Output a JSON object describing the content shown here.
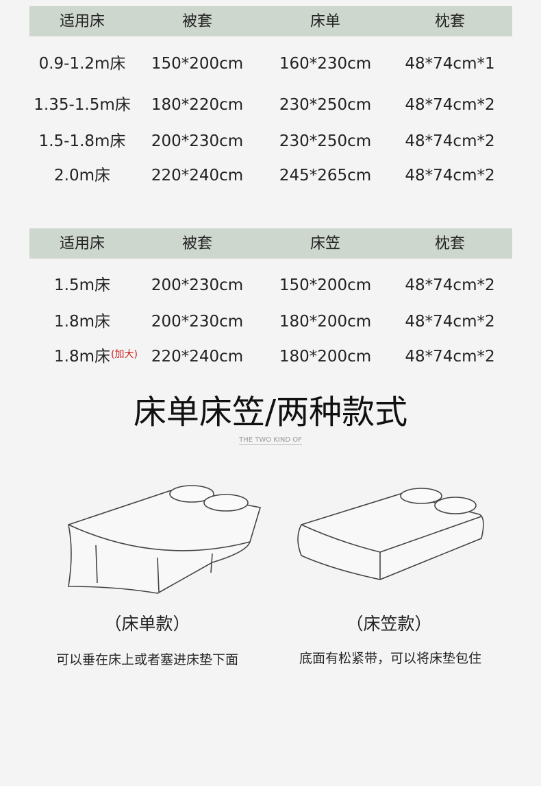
{
  "table1": {
    "headers": [
      "适用床",
      "被套",
      "床单",
      "枕套"
    ],
    "rows": [
      [
        "0.9-1.2m床",
        "150*200cm",
        "160*230cm",
        "48*74cm*1"
      ],
      [
        "1.35-1.5m床",
        "180*220cm",
        "230*250cm",
        "48*74cm*2"
      ],
      [
        "1.5-1.8m床",
        "200*230cm",
        "230*250cm",
        "48*74cm*2"
      ],
      [
        "2.0m床",
        "220*240cm",
        "245*265cm",
        "48*74cm*2"
      ]
    ]
  },
  "table2": {
    "headers": [
      "适用床",
      "被套",
      "床笠",
      "枕套"
    ],
    "rows": [
      [
        "1.5m床",
        "200*230cm",
        "150*200cm",
        "48*74cm*2"
      ],
      [
        "1.8m床",
        "200*230cm",
        "180*200cm",
        "48*74cm*2"
      ],
      [
        "1.8m床",
        "220*240cm",
        "180*200cm",
        "48*74cm*2"
      ]
    ],
    "note": "(加大)"
  },
  "section": {
    "title": "床单床笠/两种款式",
    "subtitle": "THE TWO KIND OF"
  },
  "styles": [
    {
      "name": "（床单款）",
      "desc": "可以垂在床上或者塞进床垫下面"
    },
    {
      "name": "（床笠款）",
      "desc": "底面有松紧带，可以将床垫包住"
    }
  ],
  "colors": {
    "header_bg": "#ced7cd",
    "background": "#f4f4f4",
    "note": "#d0181c"
  }
}
